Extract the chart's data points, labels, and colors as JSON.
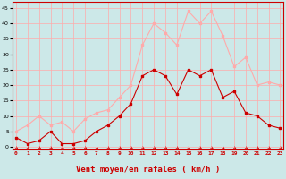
{
  "x": [
    0,
    1,
    2,
    3,
    4,
    5,
    6,
    7,
    8,
    9,
    10,
    11,
    12,
    13,
    14,
    15,
    16,
    17,
    18,
    19,
    20,
    21,
    22,
    23
  ],
  "vent_moyen": [
    3,
    1,
    2,
    5,
    1,
    1,
    2,
    5,
    7,
    10,
    14,
    23,
    25,
    23,
    17,
    25,
    23,
    25,
    16,
    18,
    11,
    10,
    7,
    6
  ],
  "en_rafales": [
    5,
    7,
    10,
    7,
    8,
    5,
    9,
    11,
    12,
    16,
    20,
    33,
    40,
    37,
    33,
    44,
    40,
    44,
    36,
    26,
    29,
    20,
    21,
    20
  ],
  "color_moyen": "#cc0000",
  "color_rafales": "#ffaaaa",
  "bg_color": "#cce8e8",
  "grid_color": "#ffaaaa",
  "xlabel": "Vent moyen/en rafales ( km/h )",
  "xlabel_color": "#cc0000",
  "ylabel_ticks": [
    0,
    5,
    10,
    15,
    20,
    25,
    30,
    35,
    40,
    45
  ],
  "ylim": [
    -1,
    47
  ],
  "xlim": [
    -0.3,
    23.3
  ]
}
